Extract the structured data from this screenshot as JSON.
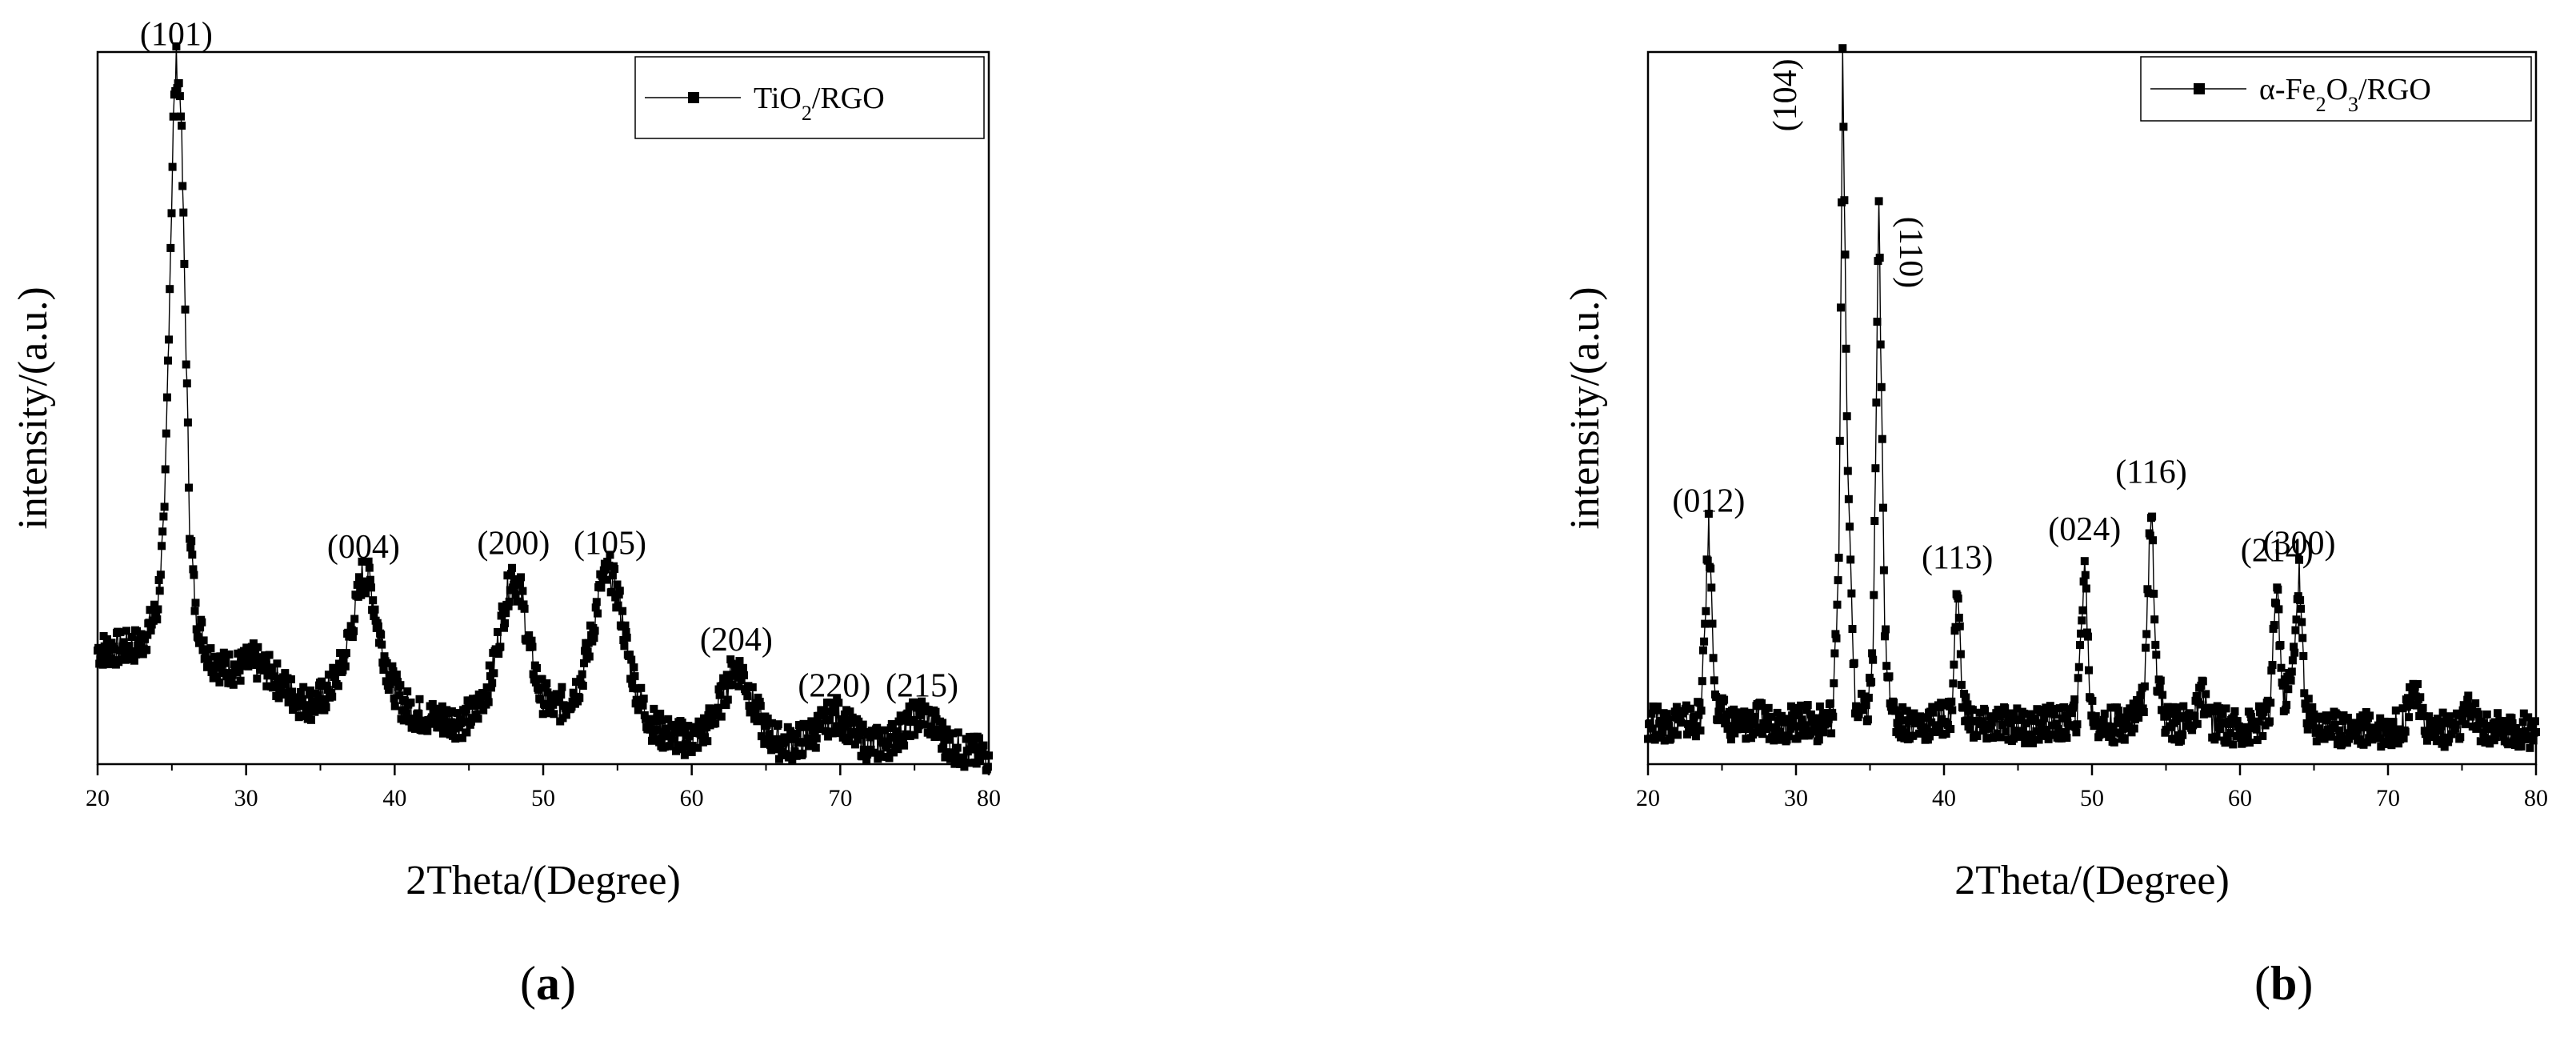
{
  "chart_data": [
    {
      "panel": "(a)",
      "panel_letter": "a",
      "type": "line",
      "title": "",
      "xlabel": "2Theta/(Degree)",
      "ylabel": "intensity/(a.u.)",
      "xlim": [
        20,
        80
      ],
      "ylim": [
        0,
        1.0
      ],
      "xticks": [
        20,
        30,
        40,
        50,
        60,
        70,
        80
      ],
      "yticks_shown": false,
      "grid": false,
      "legend_position": "top-right",
      "marker": "square",
      "series": [
        {
          "name": "TiO2/RGO",
          "name_main": "TiO",
          "name_sub": "2",
          "name_tail": "/RGO",
          "points": [
            [
              20.0,
              0.16
            ],
            [
              21.0,
              0.162
            ],
            [
              22.0,
              0.163
            ],
            [
              23.0,
              0.17
            ],
            [
              24.0,
              0.215
            ],
            [
              24.5,
              0.34
            ],
            [
              24.8,
              0.62
            ],
            [
              25.1,
              0.9
            ],
            [
              25.3,
              0.985
            ],
            [
              25.6,
              0.93
            ],
            [
              25.9,
              0.64
            ],
            [
              26.2,
              0.34
            ],
            [
              26.6,
              0.21
            ],
            [
              27.5,
              0.15
            ],
            [
              28.5,
              0.135
            ],
            [
              29.5,
              0.135
            ],
            [
              30.5,
              0.145
            ],
            [
              31.5,
              0.13
            ],
            [
              32.5,
              0.11
            ],
            [
              33.5,
              0.09
            ],
            [
              34.5,
              0.085
            ],
            [
              35.5,
              0.1
            ],
            [
              36.5,
              0.14
            ],
            [
              37.3,
              0.21
            ],
            [
              37.8,
              0.265
            ],
            [
              38.3,
              0.26
            ],
            [
              38.9,
              0.19
            ],
            [
              39.6,
              0.125
            ],
            [
              40.5,
              0.085
            ],
            [
              41.5,
              0.07
            ],
            [
              42.5,
              0.065
            ],
            [
              43.5,
              0.062
            ],
            [
              44.5,
              0.06
            ],
            [
              45.5,
              0.075
            ],
            [
              46.5,
              0.12
            ],
            [
              47.3,
              0.21
            ],
            [
              47.9,
              0.27
            ],
            [
              48.5,
              0.24
            ],
            [
              49.1,
              0.16
            ],
            [
              49.8,
              0.1
            ],
            [
              50.6,
              0.08
            ],
            [
              51.5,
              0.085
            ],
            [
              52.5,
              0.115
            ],
            [
              53.3,
              0.185
            ],
            [
              53.9,
              0.255
            ],
            [
              54.5,
              0.27
            ],
            [
              55.1,
              0.23
            ],
            [
              55.7,
              0.155
            ],
            [
              56.4,
              0.095
            ],
            [
              57.2,
              0.06
            ],
            [
              58.0,
              0.045
            ],
            [
              59.0,
              0.038
            ],
            [
              60.0,
              0.035
            ],
            [
              61.0,
              0.05
            ],
            [
              62.0,
              0.09
            ],
            [
              62.8,
              0.135
            ],
            [
              63.4,
              0.13
            ],
            [
              64.1,
              0.085
            ],
            [
              65.0,
              0.045
            ],
            [
              66.0,
              0.03
            ],
            [
              67.0,
              0.03
            ],
            [
              68.0,
              0.04
            ],
            [
              69.0,
              0.06
            ],
            [
              69.6,
              0.07
            ],
            [
              70.3,
              0.06
            ],
            [
              71.0,
              0.04
            ],
            [
              72.0,
              0.028
            ],
            [
              73.0,
              0.028
            ],
            [
              74.0,
              0.045
            ],
            [
              75.0,
              0.065
            ],
            [
              75.6,
              0.07
            ],
            [
              76.3,
              0.055
            ],
            [
              77.0,
              0.035
            ],
            [
              78.0,
              0.02
            ],
            [
              79.0,
              0.015
            ],
            [
              80.0,
              0.012
            ]
          ]
        }
      ],
      "annotations": [
        {
          "text": "(101)",
          "x": 25.3,
          "y": 0.985
        },
        {
          "text": "(004)",
          "x": 37.9,
          "y": 0.265
        },
        {
          "text": "(200)",
          "x": 48.0,
          "y": 0.27
        },
        {
          "text": "(105)",
          "x": 54.5,
          "y": 0.27
        },
        {
          "text": "(204)",
          "x": 63.0,
          "y": 0.135
        },
        {
          "text": "(220)",
          "x": 69.6,
          "y": 0.07
        },
        {
          "text": "(215)",
          "x": 75.5,
          "y": 0.07
        }
      ]
    },
    {
      "panel": "(b)",
      "panel_letter": "b",
      "type": "line",
      "title": "",
      "xlabel": "2Theta/(Degree)",
      "ylabel": "intensity/(a.u.)",
      "xlim": [
        20,
        80
      ],
      "ylim": [
        0,
        1.0
      ],
      "xticks": [
        20,
        30,
        40,
        50,
        60,
        70,
        80
      ],
      "yticks_shown": false,
      "grid": false,
      "legend_position": "top-right",
      "marker": "square",
      "series": [
        {
          "name": "α-Fe2O3/RGO",
          "name_main": "α-Fe",
          "name_sub": "2",
          "name_mid": "O",
          "name_sub2": "3",
          "name_tail": "/RGO",
          "points": [
            [
              20.0,
              0.06
            ],
            [
              21.0,
              0.055
            ],
            [
              22.0,
              0.063
            ],
            [
              23.0,
              0.058
            ],
            [
              23.6,
              0.07
            ],
            [
              24.1,
              0.33
            ],
            [
              24.6,
              0.075
            ],
            [
              25.5,
              0.06
            ],
            [
              26.5,
              0.055
            ],
            [
              27.5,
              0.062
            ],
            [
              28.5,
              0.058
            ],
            [
              29.5,
              0.057
            ],
            [
              30.5,
              0.06
            ],
            [
              31.5,
              0.055
            ],
            [
              32.5,
              0.07
            ],
            [
              32.9,
              0.3
            ],
            [
              33.15,
              0.985
            ],
            [
              33.5,
              0.4
            ],
            [
              34.0,
              0.08
            ],
            [
              34.8,
              0.07
            ],
            [
              35.2,
              0.15
            ],
            [
              35.6,
              0.78
            ],
            [
              36.0,
              0.18
            ],
            [
              36.6,
              0.062
            ],
            [
              37.5,
              0.058
            ],
            [
              38.5,
              0.055
            ],
            [
              39.5,
              0.06
            ],
            [
              40.5,
              0.07
            ],
            [
              40.9,
              0.25
            ],
            [
              41.3,
              0.08
            ],
            [
              42.0,
              0.055
            ],
            [
              43.0,
              0.052
            ],
            [
              44.0,
              0.058
            ],
            [
              45.0,
              0.055
            ],
            [
              46.0,
              0.052
            ],
            [
              47.0,
              0.058
            ],
            [
              48.0,
              0.055
            ],
            [
              49.0,
              0.07
            ],
            [
              49.5,
              0.29
            ],
            [
              49.9,
              0.08
            ],
            [
              50.5,
              0.055
            ],
            [
              51.5,
              0.055
            ],
            [
              52.5,
              0.06
            ],
            [
              53.5,
              0.09
            ],
            [
              54.0,
              0.37
            ],
            [
              54.4,
              0.12
            ],
            [
              55.0,
              0.06
            ],
            [
              56.0,
              0.055
            ],
            [
              57.0,
              0.068
            ],
            [
              57.5,
              0.1
            ],
            [
              58.0,
              0.06
            ],
            [
              59.0,
              0.055
            ],
            [
              60.0,
              0.05
            ],
            [
              61.0,
              0.052
            ],
            [
              62.0,
              0.07
            ],
            [
              62.5,
              0.26
            ],
            [
              62.9,
              0.09
            ],
            [
              63.5,
              0.12
            ],
            [
              64.0,
              0.27
            ],
            [
              64.4,
              0.08
            ],
            [
              65.0,
              0.055
            ],
            [
              66.0,
              0.052
            ],
            [
              67.0,
              0.05
            ],
            [
              68.0,
              0.048
            ],
            [
              69.0,
              0.05
            ],
            [
              70.0,
              0.048
            ],
            [
              71.0,
              0.055
            ],
            [
              71.7,
              0.115
            ],
            [
              72.3,
              0.06
            ],
            [
              73.0,
              0.05
            ],
            [
              74.0,
              0.048
            ],
            [
              75.0,
              0.055
            ],
            [
              75.6,
              0.08
            ],
            [
              76.2,
              0.05
            ],
            [
              77.0,
              0.048
            ],
            [
              78.0,
              0.045
            ],
            [
              79.0,
              0.048
            ],
            [
              80.0,
              0.045
            ]
          ]
        }
      ],
      "annotations": [
        {
          "text": "(012)",
          "x": 24.1,
          "y": 0.33
        },
        {
          "text": "(104)",
          "x": 33.15,
          "y": 0.985,
          "rotated": true
        },
        {
          "text": "(110)",
          "x": 35.6,
          "y": 0.78,
          "rotated": true
        },
        {
          "text": "(113)",
          "x": 40.9,
          "y": 0.25
        },
        {
          "text": "(024)",
          "x": 49.5,
          "y": 0.29
        },
        {
          "text": "(116)",
          "x": 54.0,
          "y": 0.37
        },
        {
          "text": "(214)",
          "x": 62.5,
          "y": 0.26
        },
        {
          "text": "(300)",
          "x": 64.0,
          "y": 0.27
        }
      ]
    }
  ]
}
